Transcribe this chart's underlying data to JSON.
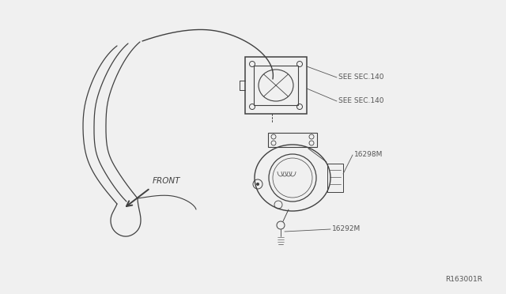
{
  "bg_color": "#f0f0f0",
  "line_color": "#404040",
  "label_color": "#555555",
  "labels": {
    "see_sec_140_top": "SEE SEC.140",
    "see_sec_140_bot": "SEE SEC.140",
    "part_16298m": "16298M",
    "part_16292m": "16292M",
    "front": "FRONT",
    "ref": "R163001R"
  },
  "label_fontsize": 6.5,
  "ref_fontsize": 6.5,
  "figsize": [
    6.4,
    3.72
  ],
  "dpi": 100
}
